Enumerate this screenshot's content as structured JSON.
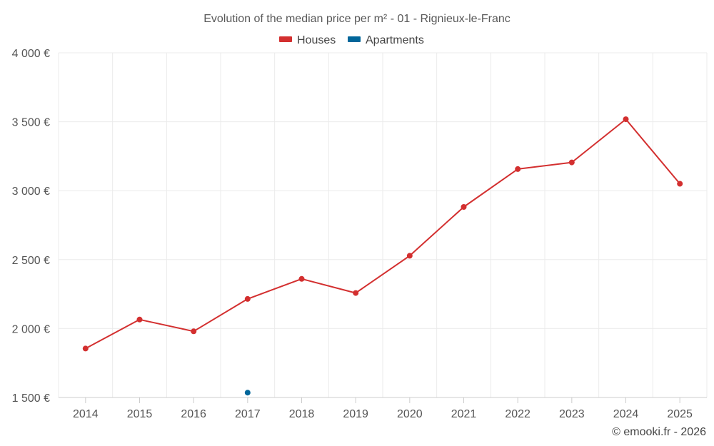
{
  "chart_data": {
    "type": "line",
    "title": "Evolution of the median price per m² - 01 - Rignieux-le-Franc",
    "categories": [
      "2014",
      "2015",
      "2016",
      "2017",
      "2018",
      "2019",
      "2020",
      "2021",
      "2022",
      "2023",
      "2024",
      "2025"
    ],
    "y_ticks": [
      1500,
      2000,
      2500,
      3000,
      3500,
      4000
    ],
    "y_tick_labels": [
      "1 500 €",
      "2 000 €",
      "2 500 €",
      "3 000 €",
      "3 500 €",
      "4 000 €"
    ],
    "ylim": [
      1500,
      4000
    ],
    "xlabel": "",
    "ylabel": "",
    "grid": true,
    "legend_position": "top-center",
    "series": [
      {
        "name": "Houses",
        "color": "#d32f2f",
        "values": [
          1855,
          2065,
          1980,
          2215,
          2360,
          2258,
          2528,
          2882,
          3157,
          3205,
          3518,
          3050
        ]
      },
      {
        "name": "Apartments",
        "color": "#01669a",
        "values": [
          null,
          null,
          null,
          1535,
          null,
          null,
          null,
          null,
          null,
          null,
          null,
          null
        ]
      }
    ],
    "credit": "© emooki.fr - 2026"
  }
}
